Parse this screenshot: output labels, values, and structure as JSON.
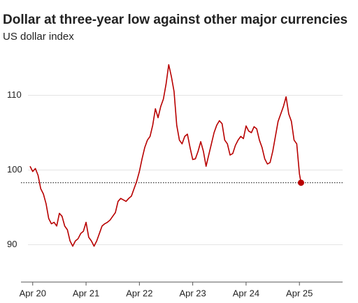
{
  "chart_data": {
    "type": "line",
    "title": "Dollar at three-year low against other major currencies",
    "subtitle": "US dollar index",
    "x": [
      2020.2,
      2020.25,
      2020.3,
      2020.35,
      2020.4,
      2020.45,
      2020.5,
      2020.55,
      2020.6,
      2020.65,
      2020.7,
      2020.75,
      2020.8,
      2020.85,
      2020.9,
      2020.95,
      2021.0,
      2021.05,
      2021.1,
      2021.15,
      2021.2,
      2021.25,
      2021.3,
      2021.35,
      2021.4,
      2021.45,
      2021.5,
      2021.55,
      2021.6,
      2021.65,
      2021.7,
      2021.75,
      2021.8,
      2021.85,
      2021.9,
      2021.95,
      2022.0,
      2022.05,
      2022.1,
      2022.15,
      2022.2,
      2022.25,
      2022.3,
      2022.35,
      2022.4,
      2022.45,
      2022.5,
      2022.55,
      2022.6,
      2022.65,
      2022.7,
      2022.75,
      2022.8,
      2022.85,
      2022.9,
      2022.95,
      2023.0,
      2023.05,
      2023.1,
      2023.15,
      2023.2,
      2023.25,
      2023.3,
      2023.35,
      2023.4,
      2023.45,
      2023.5,
      2023.55,
      2023.6,
      2023.65,
      2023.7,
      2023.75,
      2023.8,
      2023.85,
      2023.9,
      2023.95,
      2024.0,
      2024.05,
      2024.1,
      2024.15,
      2024.2,
      2024.25,
      2024.3,
      2024.35,
      2024.4,
      2024.45,
      2024.5,
      2024.55,
      2024.6,
      2024.65,
      2024.7,
      2024.75,
      2024.8,
      2024.85,
      2024.9,
      2024.95,
      2025.0,
      2025.05,
      2025.1,
      2025.15,
      2025.2,
      2025.25,
      2025.28
    ],
    "values": [
      100.5,
      99.8,
      100.2,
      99.3,
      97.5,
      96.8,
      95.5,
      93.5,
      92.8,
      93.0,
      92.5,
      94.2,
      93.8,
      92.5,
      92.0,
      90.5,
      89.8,
      90.5,
      90.8,
      91.5,
      91.8,
      93.0,
      91.0,
      90.5,
      89.8,
      90.5,
      91.5,
      92.5,
      92.8,
      93.0,
      93.3,
      93.8,
      94.3,
      95.8,
      96.2,
      96.0,
      95.8,
      96.2,
      96.5,
      97.5,
      98.5,
      99.8,
      101.5,
      103.0,
      104.0,
      104.5,
      106.0,
      108.2,
      107.0,
      108.5,
      109.5,
      111.5,
      114.1,
      112.5,
      110.5,
      106.0,
      104.0,
      103.5,
      104.5,
      104.8,
      103.0,
      101.4,
      101.5,
      102.5,
      103.8,
      102.5,
      100.5,
      102.0,
      103.5,
      105.0,
      106.0,
      106.6,
      106.2,
      104.0,
      103.5,
      102.0,
      102.2,
      103.3,
      104.0,
      104.5,
      104.2,
      105.9,
      105.2,
      105.0,
      105.8,
      105.5,
      104.0,
      103.0,
      101.5,
      100.8,
      101.0,
      102.5,
      104.5,
      106.5,
      107.5,
      108.5,
      109.8,
      107.5,
      106.5,
      104.0,
      103.5,
      99.5,
      98.3
    ],
    "color": "#b80000",
    "xlim": [
      2020.03,
      2026.06
    ],
    "ylim": [
      85,
      115
    ],
    "xticks": [
      {
        "value": 2020.25,
        "label": "Apr 20"
      },
      {
        "value": 2021.25,
        "label": "Apr 21"
      },
      {
        "value": 2022.25,
        "label": "Apr 22"
      },
      {
        "value": 2023.25,
        "label": "Apr 23"
      },
      {
        "value": 2024.25,
        "label": "Apr 24"
      },
      {
        "value": 2025.25,
        "label": "Apr 25"
      }
    ],
    "yticks": [
      90,
      100,
      110
    ],
    "grid": true
  }
}
